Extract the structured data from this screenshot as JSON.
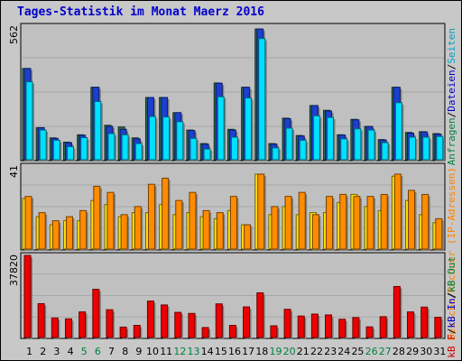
{
  "title": "Tages-Statistik im Monat Maerz 2016",
  "legends": [
    {
      "parts": [
        {
          "text": "Anfragen",
          "color": "#008040"
        },
        {
          "text": "/",
          "color": "#000000"
        },
        {
          "text": "Dateien",
          "color": "#0000cc"
        },
        {
          "text": "/",
          "color": "#000000"
        },
        {
          "text": "Seiten",
          "color": "#00a0c0"
        }
      ]
    },
    {
      "parts": [
        {
          "text": "Besuche",
          "color": "#ff8000"
        },
        {
          "text": "/",
          "color": "#000000"
        },
        {
          "text": "Rechner (IP-Adressen)",
          "color": "#ff8000"
        }
      ]
    },
    {
      "parts": [
        {
          "text": "kB F",
          "color": "#cc0000"
        },
        {
          "text": "/",
          "color": "#000000"
        },
        {
          "text": "kB In",
          "color": "#0000cc"
        },
        {
          "text": "/",
          "color": "#000000"
        },
        {
          "text": "kB Out",
          "color": "#008040"
        }
      ]
    }
  ],
  "colors": {
    "anfragen": "#2e6e4e",
    "dateien": "#1c3fd0",
    "seiten": "#00e0ff",
    "besuche": "#ff8c00",
    "rechner": "#ffe000",
    "kbf": "#ee0000",
    "weekday": "#000000",
    "weekend": "#008040"
  },
  "chart_data": {
    "type": "bar",
    "x": [
      "1",
      "2",
      "3",
      "4",
      "5",
      "6",
      "7",
      "8",
      "9",
      "10",
      "11",
      "12",
      "13",
      "14",
      "15",
      "16",
      "17",
      "18",
      "19",
      "20",
      "21",
      "22",
      "23",
      "24",
      "25",
      "26",
      "27",
      "28",
      "29",
      "30",
      "31"
    ],
    "weekend_days": [
      "5",
      "6",
      "12",
      "13",
      "19",
      "20",
      "26",
      "27"
    ],
    "panels": [
      {
        "ymax_label": "562",
        "ymax": 562,
        "series": [
          {
            "name": "Anfragen",
            "values": [
              384,
              135,
              92,
              74,
              105,
              305,
              145,
              138,
              92,
              262,
              262,
              198,
              125,
              68,
              323,
              128,
              305,
              550,
              68,
              175,
              102,
              228,
              208,
              105,
              170,
              140,
              85,
              305,
              115,
              118,
              110
            ]
          },
          {
            "name": "Dateien",
            "values": [
              384,
              135,
              90,
              72,
              103,
              305,
              140,
              128,
              88,
              262,
              262,
              198,
              123,
              66,
              322,
              125,
              305,
              550,
              66,
              173,
              100,
              228,
              205,
              104,
              168,
              140,
              83,
              305,
              112,
              117,
              108
            ]
          },
          {
            "name": "Seiten",
            "values": [
              328,
              125,
              82,
              55,
              93,
              245,
              110,
              105,
              68,
              182,
              180,
              160,
              90,
              45,
              265,
              95,
              260,
              510,
              50,
              133,
              82,
              185,
              178,
              88,
              130,
              125,
              72,
              240,
              95,
              95,
              98
            ]
          }
        ]
      },
      {
        "ymax_label": "41",
        "ymax": 41,
        "series": [
          {
            "name": "Besuche",
            "values": [
              26,
              18,
              14,
              16,
              19,
              31,
              28,
              17,
              21,
              32,
              35,
              24,
              28,
              19,
              18,
              26,
              12,
              37,
              21,
              26,
              28,
              17,
              26,
              27,
              26,
              26,
              27,
              37,
              29,
              27,
              15
            ]
          },
          {
            "name": "Rechner",
            "values": [
              25,
              16,
              12,
              14,
              14,
              24,
              22,
              16,
              18,
              18,
              22,
              17,
              18,
              16,
              15,
              19,
              12,
              37,
              17,
              21,
              17,
              18,
              18,
              23,
              27,
              21,
              19,
              36,
              24,
              17,
              13
            ]
          }
        ]
      },
      {
        "ymax_label": "37820",
        "ymax": 37820,
        "series": [
          {
            "name": "kB F",
            "values": [
              37820,
              15600,
              9000,
              8600,
              11800,
              22200,
              12800,
              4800,
              5600,
              16800,
              15000,
              11600,
              11100,
              4600,
              15500,
              5600,
              14100,
              20600,
              5400,
              13000,
              9900,
              10800,
              10400,
              8400,
              9200,
              4900,
              9600,
              23500,
              11800,
              14000,
              9300
            ]
          }
        ]
      }
    ]
  }
}
